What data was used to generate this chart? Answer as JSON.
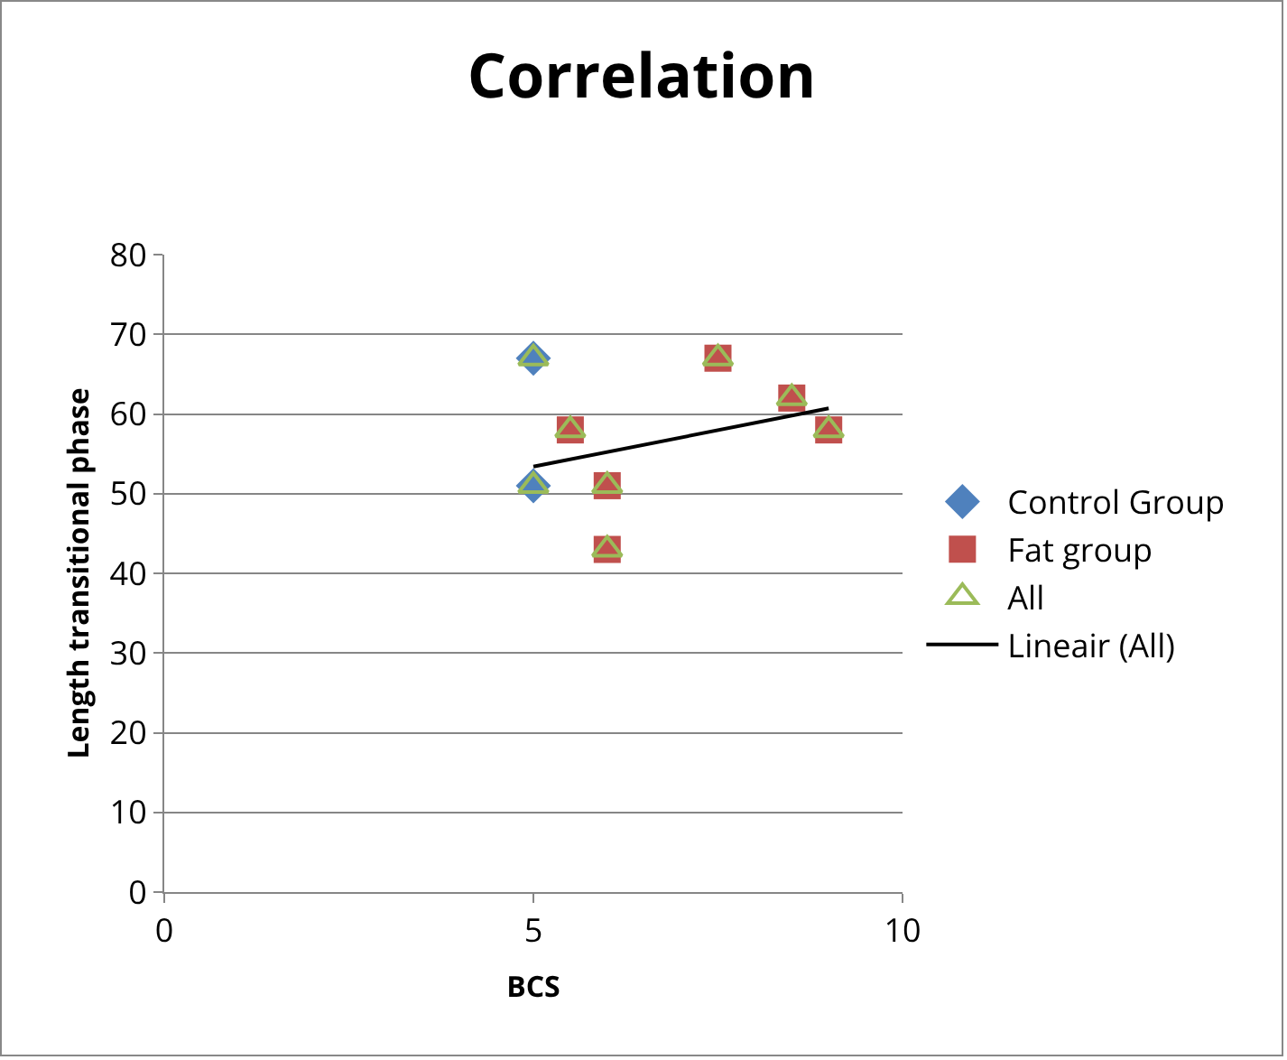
{
  "chart_data": {
    "type": "scatter",
    "title": "Correlation",
    "xlabel": "BCS",
    "ylabel": "Length transitional phase",
    "xlim": [
      0,
      10
    ],
    "xticks": [
      0,
      5,
      10
    ],
    "ylim": [
      0,
      80
    ],
    "yticks": [
      0,
      10,
      20,
      30,
      40,
      50,
      60,
      70,
      80
    ],
    "grid": "y",
    "legend": "right",
    "series": [
      {
        "name": "Control Group",
        "color": "#4f81bd",
        "marker": "diamond",
        "x": [
          5,
          5
        ],
        "values": [
          67,
          51
        ]
      },
      {
        "name": "Fat group",
        "color": "#c0504d",
        "marker": "square",
        "x": [
          5.5,
          6,
          6,
          7.5,
          8.5,
          9
        ],
        "values": [
          58,
          51,
          43,
          67,
          62,
          58
        ]
      },
      {
        "name": "All",
        "color": "#9bbb59",
        "marker": "triangle",
        "x": [
          5,
          5,
          5.5,
          6,
          6,
          7.5,
          8.5,
          9
        ],
        "values": [
          67,
          51,
          58,
          51,
          43,
          67,
          62,
          58
        ]
      },
      {
        "name": "Lineair (All)",
        "type": "line",
        "color": "#000000",
        "marker": "none",
        "x": [
          5,
          9
        ],
        "values": [
          53.4,
          60.7
        ]
      }
    ]
  }
}
